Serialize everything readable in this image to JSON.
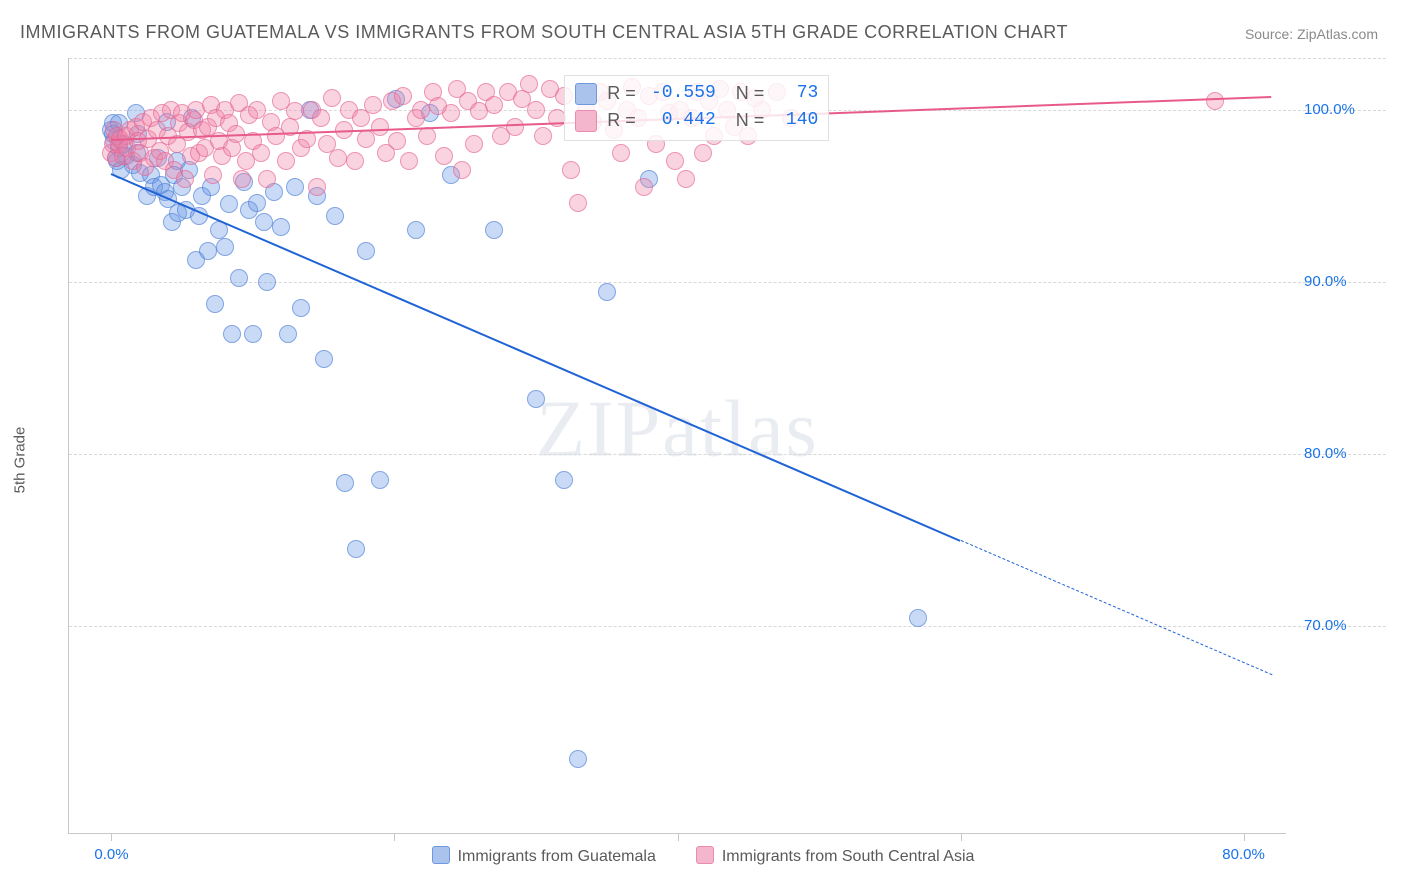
{
  "title": "IMMIGRANTS FROM GUATEMALA VS IMMIGRANTS FROM SOUTH CENTRAL ASIA 5TH GRADE CORRELATION CHART",
  "source_label": "Source:",
  "source_name": "ZipAtlas.com",
  "watermark": "ZIPatlas",
  "y_axis_title": "5th Grade",
  "chart": {
    "type": "scatter",
    "background_color": "#ffffff",
    "grid_color": "#d8d8d8",
    "axis_color": "#c8c8c8",
    "x_domain": [
      -3,
      83
    ],
    "y_domain": [
      58,
      103
    ],
    "x_ticks": [
      0,
      20,
      40,
      60,
      80
    ],
    "x_tick_labels": [
      "0.0%",
      "",
      "",
      "",
      "80.0%"
    ],
    "y_gridlines": [
      70,
      80,
      90,
      100,
      103
    ],
    "y_tick_labels": {
      "70": "70.0%",
      "80": "80.0%",
      "90": "90.0%",
      "100": "100.0%"
    },
    "x_tick_color": "#1a73e8",
    "y_tick_color": "#1a73e8",
    "title_fontsize": 18,
    "label_fontsize": 15
  },
  "series": [
    {
      "id": "guatemala",
      "label": "Immigrants from Guatemala",
      "color_fill": "rgba(100,150,230,0.35)",
      "color_stroke": "rgba(70,120,210,0.55)",
      "swatch_fill": "#a9c3ec",
      "swatch_border": "#6e99e0",
      "marker_radius": 9,
      "trend": {
        "color": "#1f63d6",
        "x1": 0,
        "y1": 96.3,
        "x2_solid": 60,
        "y2_solid": 75.0,
        "x2_dash": 82,
        "y2_dash": 67.2
      },
      "stats": {
        "R": "-0.559",
        "N": "73"
      },
      "points": [
        [
          0.0,
          98.8
        ],
        [
          0.1,
          99.2
        ],
        [
          0.1,
          98.6
        ],
        [
          0.2,
          98.2
        ],
        [
          0.3,
          97.2
        ],
        [
          0.5,
          97.8
        ],
        [
          0.5,
          99.2
        ],
        [
          0.4,
          97.0
        ],
        [
          0.7,
          96.5
        ],
        [
          0.9,
          98.0
        ],
        [
          1.0,
          97.3
        ],
        [
          1.5,
          96.8
        ],
        [
          1.7,
          99.8
        ],
        [
          1.8,
          97.5
        ],
        [
          1.9,
          98.6
        ],
        [
          2.0,
          96.3
        ],
        [
          2.5,
          95.0
        ],
        [
          2.8,
          96.2
        ],
        [
          3.0,
          95.5
        ],
        [
          3.3,
          97.2
        ],
        [
          3.5,
          95.6
        ],
        [
          3.8,
          95.2
        ],
        [
          3.9,
          99.3
        ],
        [
          4.0,
          94.8
        ],
        [
          4.3,
          93.5
        ],
        [
          4.6,
          97.0
        ],
        [
          4.4,
          96.2
        ],
        [
          4.7,
          94.0
        ],
        [
          5.0,
          95.5
        ],
        [
          5.3,
          94.2
        ],
        [
          5.5,
          96.5
        ],
        [
          5.7,
          99.5
        ],
        [
          6.0,
          91.3
        ],
        [
          6.2,
          93.8
        ],
        [
          6.4,
          95.0
        ],
        [
          6.8,
          91.8
        ],
        [
          7.0,
          95.5
        ],
        [
          7.3,
          88.7
        ],
        [
          7.6,
          93.0
        ],
        [
          8.0,
          92.0
        ],
        [
          8.3,
          94.5
        ],
        [
          8.5,
          87.0
        ],
        [
          9.0,
          90.2
        ],
        [
          9.4,
          95.8
        ],
        [
          9.7,
          94.2
        ],
        [
          10.0,
          87.0
        ],
        [
          10.3,
          94.6
        ],
        [
          10.8,
          93.5
        ],
        [
          11.0,
          90.0
        ],
        [
          11.5,
          95.2
        ],
        [
          12.0,
          93.2
        ],
        [
          12.5,
          87.0
        ],
        [
          13.0,
          95.5
        ],
        [
          13.4,
          88.5
        ],
        [
          14.0,
          100.0
        ],
        [
          14.5,
          95.0
        ],
        [
          15.0,
          85.5
        ],
        [
          15.8,
          93.8
        ],
        [
          16.5,
          78.3
        ],
        [
          17.3,
          74.5
        ],
        [
          18.0,
          91.8
        ],
        [
          19.0,
          78.5
        ],
        [
          20.1,
          100.6
        ],
        [
          21.5,
          93.0
        ],
        [
          22.5,
          99.8
        ],
        [
          24.0,
          96.2
        ],
        [
          27.0,
          93.0
        ],
        [
          30.0,
          83.2
        ],
        [
          32.0,
          78.5
        ],
        [
          33.0,
          62.3
        ],
        [
          35.0,
          89.4
        ],
        [
          38.0,
          96.0
        ],
        [
          57.0,
          70.5
        ]
      ]
    },
    {
      "id": "scasia",
      "label": "Immigrants from South Central Asia",
      "color_fill": "rgba(240,130,165,0.35)",
      "color_stroke": "rgba(225,95,140,0.55)",
      "swatch_fill": "#f4b6cd",
      "swatch_border": "#eb89ae",
      "marker_radius": 9,
      "trend": {
        "color": "#e85a8c",
        "x1": 0,
        "y1": 98.3,
        "x2_solid": 82,
        "y2_solid": 100.8,
        "x2_dash": 82,
        "y2_dash": 100.8
      },
      "stats": {
        "R": "0.442",
        "N": "140"
      },
      "points": [
        [
          0.0,
          97.5
        ],
        [
          0.1,
          98.0
        ],
        [
          0.2,
          98.8
        ],
        [
          0.3,
          97.2
        ],
        [
          0.4,
          98.5
        ],
        [
          0.5,
          98.0
        ],
        [
          0.6,
          98.3
        ],
        [
          0.8,
          97.3
        ],
        [
          1.0,
          98.5
        ],
        [
          1.1,
          97.8
        ],
        [
          1.3,
          98.8
        ],
        [
          1.5,
          97.0
        ],
        [
          1.7,
          99.0
        ],
        [
          1.9,
          98.2
        ],
        [
          2.0,
          97.5
        ],
        [
          2.2,
          99.3
        ],
        [
          2.4,
          96.7
        ],
        [
          2.6,
          98.3
        ],
        [
          2.8,
          99.5
        ],
        [
          3.0,
          97.2
        ],
        [
          3.2,
          98.8
        ],
        [
          3.4,
          97.6
        ],
        [
          3.6,
          99.8
        ],
        [
          3.8,
          97.0
        ],
        [
          4.0,
          98.5
        ],
        [
          4.2,
          100.0
        ],
        [
          4.4,
          96.5
        ],
        [
          4.6,
          98.0
        ],
        [
          4.8,
          99.2
        ],
        [
          5.0,
          99.8
        ],
        [
          5.2,
          96.0
        ],
        [
          5.4,
          98.7
        ],
        [
          5.6,
          97.3
        ],
        [
          5.8,
          99.4
        ],
        [
          6.0,
          100.0
        ],
        [
          6.2,
          97.5
        ],
        [
          6.4,
          98.8
        ],
        [
          6.6,
          97.8
        ],
        [
          6.8,
          99.0
        ],
        [
          7.0,
          100.3
        ],
        [
          7.2,
          96.2
        ],
        [
          7.4,
          99.5
        ],
        [
          7.6,
          98.2
        ],
        [
          7.8,
          97.3
        ],
        [
          8.0,
          100.0
        ],
        [
          8.3,
          99.2
        ],
        [
          8.5,
          97.8
        ],
        [
          8.8,
          98.6
        ],
        [
          9.0,
          100.4
        ],
        [
          9.2,
          96.0
        ],
        [
          9.5,
          97.0
        ],
        [
          9.7,
          99.7
        ],
        [
          10.0,
          98.2
        ],
        [
          10.3,
          100.0
        ],
        [
          10.6,
          97.5
        ],
        [
          11.0,
          96.0
        ],
        [
          11.3,
          99.3
        ],
        [
          11.6,
          98.5
        ],
        [
          12.0,
          100.5
        ],
        [
          12.3,
          97.0
        ],
        [
          12.6,
          99.0
        ],
        [
          13.0,
          99.9
        ],
        [
          13.4,
          97.8
        ],
        [
          13.8,
          98.3
        ],
        [
          14.2,
          100.0
        ],
        [
          14.5,
          95.5
        ],
        [
          14.8,
          99.5
        ],
        [
          15.2,
          98.0
        ],
        [
          15.6,
          100.7
        ],
        [
          16.0,
          97.2
        ],
        [
          16.4,
          98.8
        ],
        [
          16.8,
          100.0
        ],
        [
          17.2,
          97.0
        ],
        [
          17.6,
          99.5
        ],
        [
          18.0,
          98.3
        ],
        [
          18.5,
          100.3
        ],
        [
          19.0,
          99.0
        ],
        [
          19.4,
          97.5
        ],
        [
          19.8,
          100.5
        ],
        [
          20.2,
          98.2
        ],
        [
          20.6,
          100.8
        ],
        [
          21.0,
          97.0
        ],
        [
          21.5,
          99.5
        ],
        [
          21.9,
          100.0
        ],
        [
          22.3,
          98.5
        ],
        [
          22.7,
          101.0
        ],
        [
          23.1,
          100.2
        ],
        [
          23.5,
          97.3
        ],
        [
          24.0,
          99.8
        ],
        [
          24.4,
          101.2
        ],
        [
          24.8,
          96.5
        ],
        [
          25.2,
          100.5
        ],
        [
          25.6,
          98.0
        ],
        [
          26.0,
          99.9
        ],
        [
          26.5,
          101.0
        ],
        [
          27.0,
          100.3
        ],
        [
          27.5,
          98.5
        ],
        [
          28.0,
          101.0
        ],
        [
          28.5,
          99.0
        ],
        [
          29.0,
          100.6
        ],
        [
          29.5,
          101.5
        ],
        [
          30.0,
          100.0
        ],
        [
          30.5,
          98.5
        ],
        [
          31.0,
          101.2
        ],
        [
          31.5,
          99.5
        ],
        [
          32.0,
          100.8
        ],
        [
          32.5,
          96.5
        ],
        [
          33.0,
          94.6
        ],
        [
          33.5,
          100.0
        ],
        [
          34.0,
          99.3
        ],
        [
          34.5,
          101.0
        ],
        [
          35.0,
          100.5
        ],
        [
          35.5,
          98.8
        ],
        [
          36.0,
          97.5
        ],
        [
          36.4,
          100.0
        ],
        [
          36.8,
          101.3
        ],
        [
          37.2,
          99.5
        ],
        [
          37.6,
          95.5
        ],
        [
          38.0,
          100.8
        ],
        [
          38.5,
          98.0
        ],
        [
          39.0,
          101.0
        ],
        [
          39.4,
          99.8
        ],
        [
          39.8,
          97.0
        ],
        [
          40.2,
          100.0
        ],
        [
          40.6,
          96.0
        ],
        [
          41.0,
          99.5
        ],
        [
          41.4,
          101.0
        ],
        [
          41.8,
          97.5
        ],
        [
          42.2,
          100.5
        ],
        [
          42.6,
          98.5
        ],
        [
          43.0,
          101.2
        ],
        [
          43.5,
          100.0
        ],
        [
          44.0,
          99.0
        ],
        [
          44.5,
          101.0
        ],
        [
          45.0,
          98.5
        ],
        [
          45.5,
          100.7
        ],
        [
          46.0,
          100.0
        ],
        [
          47.0,
          101.0
        ],
        [
          48.0,
          99.5
        ],
        [
          78.0,
          100.5
        ]
      ]
    }
  ],
  "legend": [
    "Immigrants from Guatemala",
    "Immigrants from South Central Asia"
  ],
  "stat_box": {
    "rows": [
      {
        "swatch_fill": "#a9c3ec",
        "swatch_border": "#6e99e0",
        "r": "-0.559",
        "n": "73"
      },
      {
        "swatch_fill": "#f4b6cd",
        "swatch_border": "#eb89ae",
        "r": "0.442",
        "n": "140"
      }
    ],
    "labels": {
      "R": "R =",
      "N": "N ="
    }
  }
}
